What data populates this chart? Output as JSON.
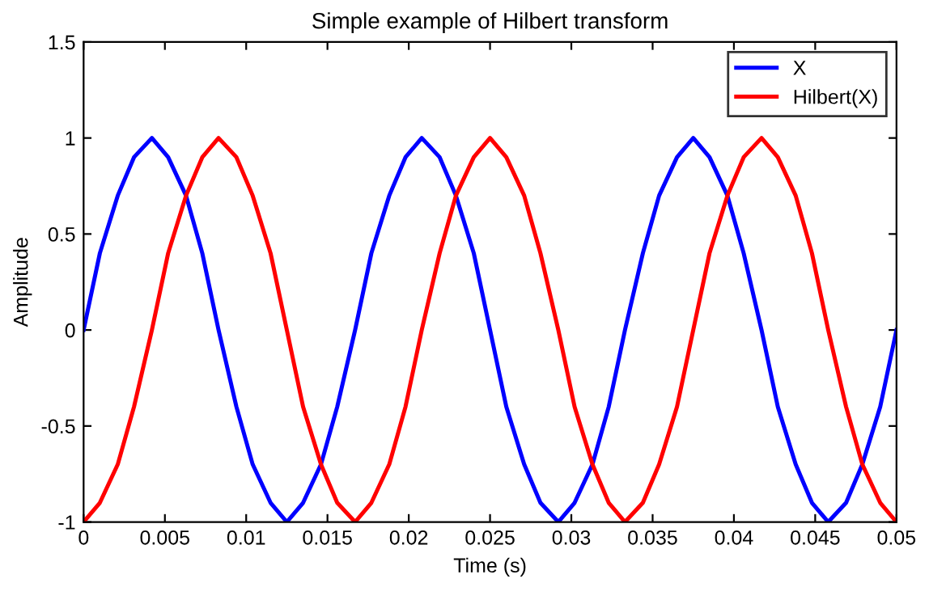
{
  "chart_data": {
    "type": "line",
    "title": "Simple example of Hilbert transform",
    "xlabel": "Time (s)",
    "ylabel": "Amplitude",
    "x": [
      0,
      0.001,
      0.0021,
      0.0031,
      0.0042,
      0.0052,
      0.0063,
      0.0073,
      0.0083,
      0.0094,
      0.0104,
      0.0115,
      0.0125,
      0.0135,
      0.0146,
      0.0156,
      0.0167,
      0.0177,
      0.0188,
      0.0198,
      0.0208,
      0.0219,
      0.0229,
      0.024,
      0.025,
      0.026,
      0.0271,
      0.0281,
      0.0292,
      0.0302,
      0.0313,
      0.0323,
      0.0333,
      0.0344,
      0.0354,
      0.0365,
      0.0375,
      0.0385,
      0.0396,
      0.0406,
      0.0417,
      0.0427,
      0.0438,
      0.0448,
      0.0458,
      0.0469,
      0.0479,
      0.049,
      0.05
    ],
    "series": [
      {
        "name": "X",
        "color": "#0000ff",
        "values": [
          0,
          0.4,
          0.7,
          0.9,
          1,
          0.9,
          0.7,
          0.4,
          0,
          -0.4,
          -0.7,
          -0.9,
          -1,
          -0.9,
          -0.7,
          -0.4,
          0,
          0.4,
          0.7,
          0.9,
          1,
          0.9,
          0.7,
          0.4,
          0,
          -0.4,
          -0.7,
          -0.9,
          -1,
          -0.9,
          -0.7,
          -0.4,
          0,
          0.4,
          0.7,
          0.9,
          1,
          0.9,
          0.7,
          0.4,
          0,
          -0.4,
          -0.7,
          -0.9,
          -1,
          -0.9,
          -0.7,
          -0.4,
          0
        ]
      },
      {
        "name": "Hilbert(X)",
        "color": "#ff0000",
        "values": [
          -1,
          -0.9,
          -0.7,
          -0.4,
          0,
          0.4,
          0.7,
          0.9,
          1,
          0.9,
          0.7,
          0.4,
          0,
          -0.4,
          -0.7,
          -0.9,
          -1,
          -0.9,
          -0.7,
          -0.4,
          0,
          0.4,
          0.7,
          0.9,
          1,
          0.9,
          0.7,
          0.4,
          0,
          -0.4,
          -0.7,
          -0.9,
          -1,
          -0.9,
          -0.7,
          -0.4,
          0,
          0.4,
          0.7,
          0.9,
          1,
          0.9,
          0.7,
          0.4,
          0,
          -0.4,
          -0.7,
          -0.9,
          -1
        ]
      }
    ],
    "xlim": [
      0,
      0.05
    ],
    "xticks": [
      0,
      0.005,
      0.01,
      0.015,
      0.02,
      0.025,
      0.03,
      0.035,
      0.04,
      0.045,
      0.05
    ],
    "ylim": [
      -1,
      1.5
    ],
    "yticks": [
      -1,
      -0.5,
      0,
      0.5,
      1,
      1.5
    ],
    "legend": "top right",
    "grid": false
  }
}
